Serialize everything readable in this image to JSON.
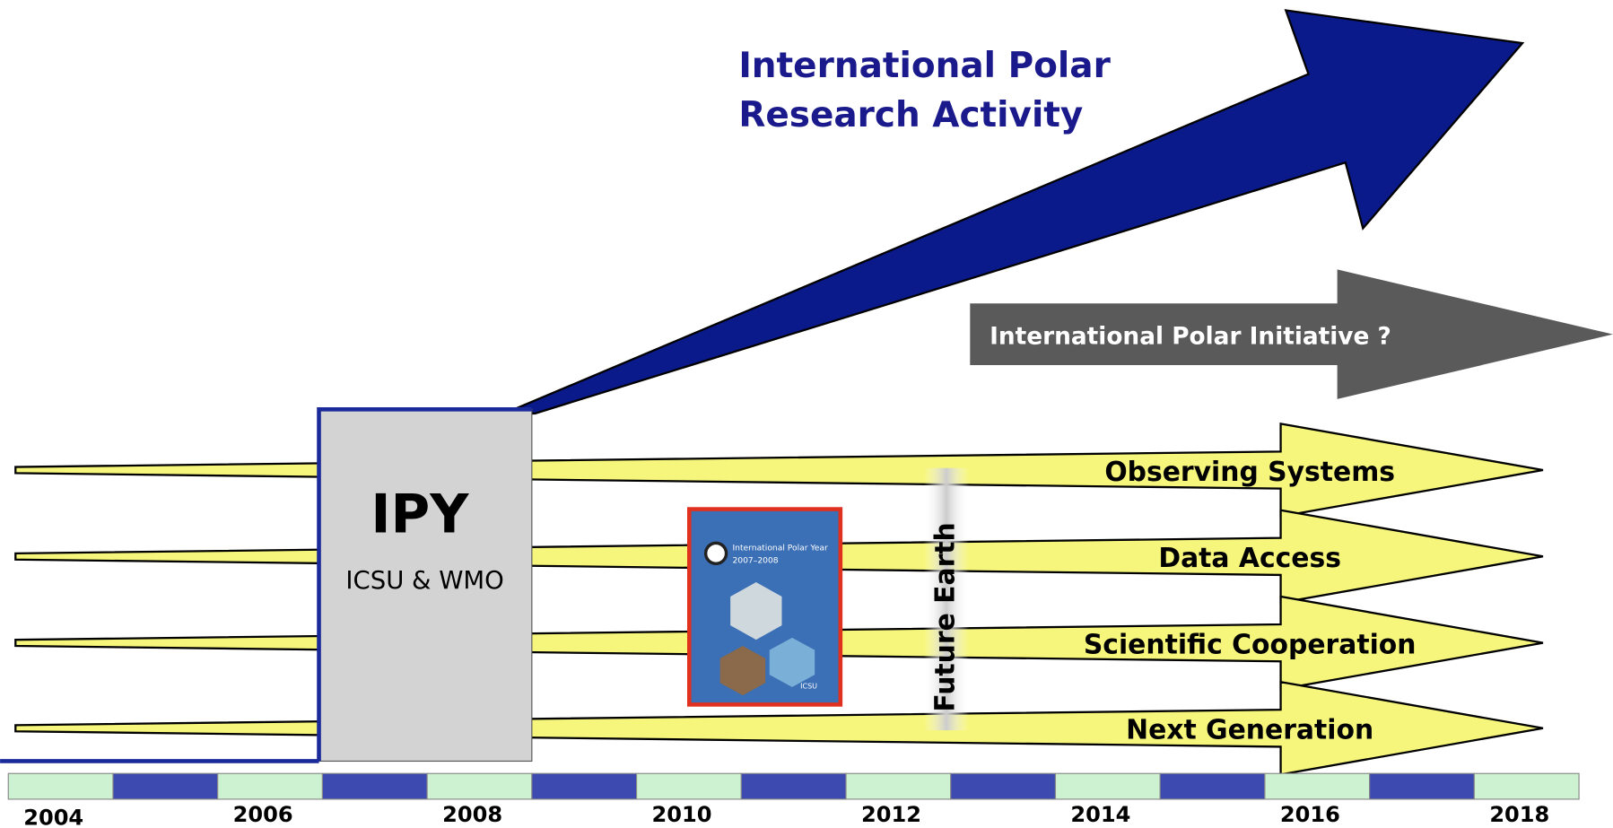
{
  "title": {
    "line1": "International Polar",
    "line2": "Research Activity"
  },
  "initiative": "International Polar Initiative ?",
  "ipy": {
    "label": "IPY",
    "sub": "ICSU & WMO"
  },
  "book": {
    "title": "International Polar Year",
    "years": "2007–2008",
    "org": "ICSU"
  },
  "future_earth": "Future Earth",
  "streams": [
    "Observing Systems",
    "Data Access",
    "Scientific Cooperation",
    "Next Generation"
  ],
  "years": [
    "2004",
    "2006",
    "2008",
    "2010",
    "2012",
    "2014",
    "2016",
    "2018"
  ]
}
